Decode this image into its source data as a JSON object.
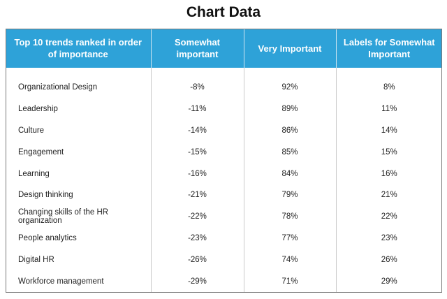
{
  "title": "Chart Data",
  "chart_data": {
    "type": "table",
    "columns": [
      "Top 10 trends ranked in order of importance",
      "Somewhat important",
      "Very Important",
      "Labels for Somewhat Important"
    ],
    "rows": [
      [
        "Organizational Design",
        "-8%",
        "92%",
        "8%"
      ],
      [
        "Leadership",
        "-11%",
        "89%",
        "11%"
      ],
      [
        "Culture",
        "-14%",
        "86%",
        "14%"
      ],
      [
        "Engagement",
        "-15%",
        "85%",
        "15%"
      ],
      [
        "Learning",
        "-16%",
        "84%",
        "16%"
      ],
      [
        "Design thinking",
        "-21%",
        "79%",
        "21%"
      ],
      [
        "Changing skills of the HR organization",
        "-22%",
        "78%",
        "22%"
      ],
      [
        "People analytics",
        "-23%",
        "77%",
        "23%"
      ],
      [
        "Digital HR",
        "-26%",
        "74%",
        "26%"
      ],
      [
        "Workforce management",
        "-29%",
        "71%",
        "29%"
      ]
    ]
  },
  "colors": {
    "header_bg": "#2ea2d8",
    "header_text": "#ffffff"
  }
}
